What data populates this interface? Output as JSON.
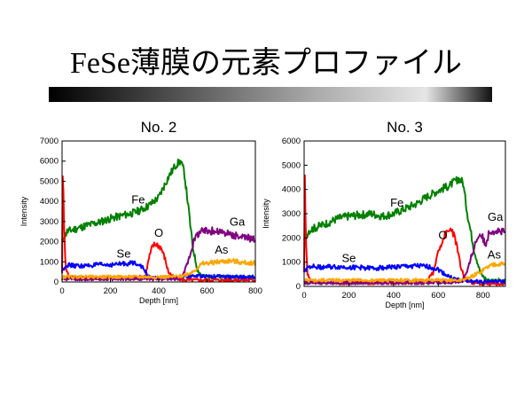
{
  "slide": {
    "title": "FeSe薄膜の元素プロファイル"
  },
  "chart_data": [
    {
      "type": "line",
      "title": "No. 2",
      "xlabel": "Depth [nm]",
      "ylabel": "Intensity",
      "xlim": [
        0,
        800
      ],
      "ylim": [
        0,
        7000
      ],
      "xticks": [
        0,
        200,
        400,
        600,
        800
      ],
      "yticks": [
        0,
        1000,
        2000,
        3000,
        4000,
        5000,
        6000,
        7000
      ],
      "grid": false,
      "legend": "inline labels",
      "series": [
        {
          "name": "Fe",
          "color": "#008000",
          "label_at": [
            315,
            3900
          ],
          "x": [
            0,
            20,
            60,
            100,
            150,
            200,
            250,
            300,
            330,
            360,
            400,
            440,
            470,
            490,
            505,
            520,
            540,
            560,
            580,
            600,
            650,
            700,
            750,
            800
          ],
          "y": [
            2000,
            2500,
            2650,
            2800,
            2950,
            3150,
            3300,
            3450,
            3600,
            3800,
            4200,
            5200,
            5800,
            6000,
            5500,
            4000,
            1800,
            600,
            300,
            250,
            250,
            250,
            250,
            250
          ]
        },
        {
          "name": "O",
          "color": "#ff0000",
          "label_at": [
            400,
            2250
          ],
          "x": [
            0,
            3,
            8,
            15,
            30,
            100,
            200,
            300,
            345,
            360,
            375,
            390,
            410,
            425,
            440,
            460,
            480,
            500,
            550,
            600,
            650,
            700,
            750,
            800
          ],
          "y": [
            500,
            5700,
            3000,
            700,
            250,
            200,
            200,
            200,
            300,
            1200,
            1800,
            1900,
            1700,
            1200,
            500,
            250,
            150,
            100,
            100,
            100,
            100,
            100,
            100,
            100
          ]
        },
        {
          "name": "Se",
          "color": "#0000ff",
          "label_at": [
            255,
            1200
          ],
          "x": [
            0,
            20,
            50,
            100,
            150,
            200,
            250,
            300,
            320,
            340,
            360,
            380,
            420,
            460,
            500,
            540,
            600,
            700,
            800
          ],
          "y": [
            600,
            850,
            800,
            800,
            850,
            850,
            900,
            950,
            900,
            600,
            250,
            200,
            200,
            200,
            250,
            300,
            300,
            250,
            250
          ]
        },
        {
          "name": "Ga",
          "color": "#800080",
          "label_at": [
            725,
            2800
          ],
          "x": [
            0,
            100,
            200,
            300,
            400,
            480,
            500,
            520,
            540,
            555,
            570,
            600,
            650,
            700,
            750,
            800
          ],
          "y": [
            150,
            150,
            150,
            150,
            150,
            150,
            300,
            1000,
            1800,
            2300,
            2500,
            2550,
            2500,
            2350,
            2200,
            2150
          ]
        },
        {
          "name": "As",
          "color": "#ffa500",
          "label_at": [
            660,
            1400
          ],
          "x": [
            0,
            100,
            200,
            300,
            400,
            460,
            500,
            540,
            580,
            650,
            700,
            750,
            800
          ],
          "y": [
            250,
            250,
            250,
            250,
            250,
            250,
            300,
            500,
            900,
            1000,
            1050,
            950,
            950
          ]
        }
      ]
    },
    {
      "type": "line",
      "title": "No. 3",
      "xlabel": "Depth [nm]",
      "ylabel": "Intensity",
      "xlim": [
        0,
        900
      ],
      "ylim": [
        0,
        6000
      ],
      "xticks": [
        0,
        200,
        400,
        600,
        800
      ],
      "yticks": [
        0,
        1000,
        2000,
        3000,
        4000,
        5000,
        6000
      ],
      "grid": false,
      "legend": "inline labels",
      "series": [
        {
          "name": "Fe",
          "color": "#008000",
          "label_at": [
            415,
            3300
          ],
          "x": [
            0,
            20,
            60,
            100,
            150,
            200,
            250,
            300,
            350,
            400,
            450,
            500,
            550,
            600,
            650,
            690,
            710,
            730,
            760,
            790,
            820,
            900
          ],
          "y": [
            1900,
            2300,
            2450,
            2600,
            2800,
            2900,
            2950,
            3000,
            2900,
            3000,
            3200,
            3400,
            3700,
            3950,
            4150,
            4450,
            4300,
            3000,
            1500,
            500,
            250,
            250
          ]
        },
        {
          "name": "O",
          "color": "#ff0000",
          "label_at": [
            620,
            1950
          ],
          "x": [
            0,
            3,
            8,
            15,
            30,
            150,
            300,
            450,
            540,
            580,
            600,
            630,
            660,
            680,
            700,
            720,
            750,
            800,
            900
          ],
          "y": [
            500,
            4500,
            2000,
            500,
            200,
            150,
            150,
            150,
            200,
            600,
            1500,
            2100,
            2400,
            1800,
            800,
            300,
            150,
            100,
            100
          ]
        },
        {
          "name": "Se",
          "color": "#0000ff",
          "label_at": [
            200,
            1000
          ],
          "x": [
            0,
            20,
            60,
            100,
            200,
            300,
            400,
            500,
            560,
            600,
            630,
            660,
            700,
            760,
            820,
            900
          ],
          "y": [
            600,
            850,
            800,
            800,
            800,
            750,
            800,
            850,
            800,
            700,
            500,
            350,
            250,
            200,
            200,
            200
          ]
        },
        {
          "name": "Ga",
          "color": "#800080",
          "label_at": [
            855,
            2700
          ],
          "x": [
            0,
            200,
            400,
            600,
            700,
            730,
            750,
            770,
            790,
            810,
            830,
            860,
            900
          ],
          "y": [
            150,
            150,
            150,
            150,
            200,
            600,
            1300,
            1900,
            2200,
            1700,
            2300,
            2300,
            2200
          ]
        },
        {
          "name": "As",
          "color": "#ffa500",
          "label_at": [
            850,
            1150
          ],
          "x": [
            0,
            200,
            400,
            600,
            700,
            740,
            780,
            820,
            860,
            900
          ],
          "y": [
            250,
            250,
            250,
            250,
            250,
            350,
            550,
            800,
            950,
            900
          ]
        }
      ]
    }
  ]
}
